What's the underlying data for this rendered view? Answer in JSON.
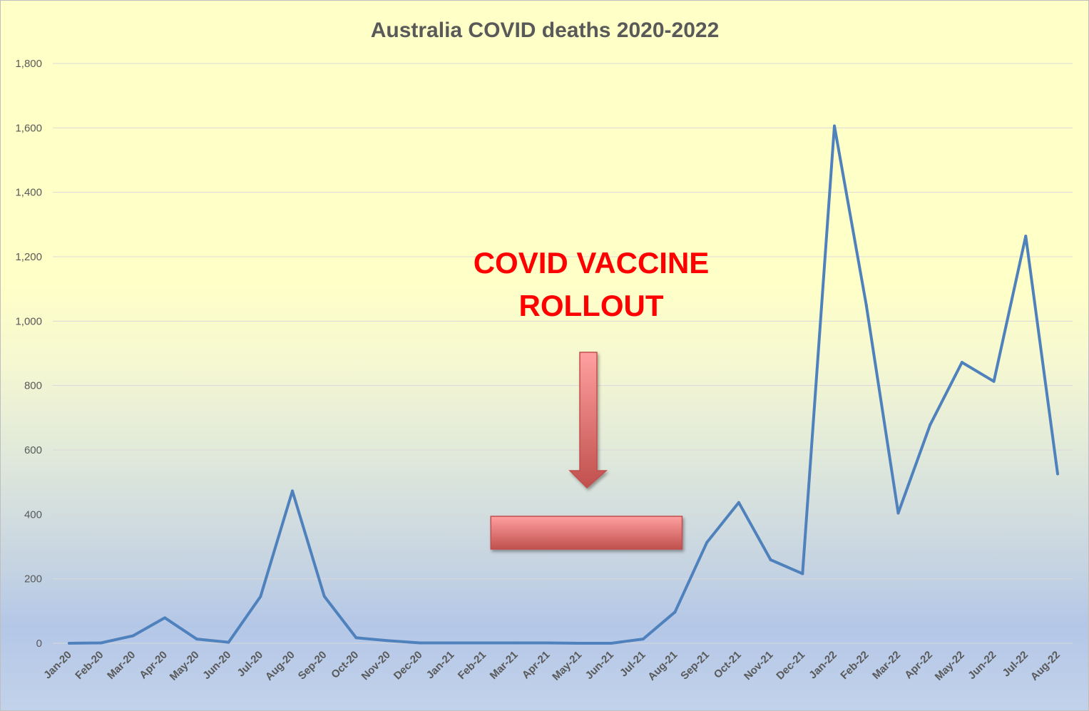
{
  "colors": {
    "line": "#4f81bd",
    "gridline": "#d9d9d9",
    "annotation_text": "#ff0000",
    "arrow_fill_top": "#ffa0a0",
    "arrow_fill_bottom": "#c0504d"
  },
  "chart_data": {
    "type": "line",
    "title": "Australia COVID deaths 2020-2022",
    "xlabel": "",
    "ylabel": "",
    "ylim": [
      0,
      1800
    ],
    "yticks": [
      "0",
      "200",
      "400",
      "600",
      "800",
      "1,000",
      "1,200",
      "1,400",
      "1,600",
      "1,800"
    ],
    "grid": true,
    "legend": "none",
    "categories": [
      "Jan-20",
      "Feb-20",
      "Mar-20",
      "Apr-20",
      "May-20",
      "Jun-20",
      "Jul-20",
      "Aug-20",
      "Sep-20",
      "Oct-20",
      "Nov-20",
      "Dec-20",
      "Jan-21",
      "Feb-21",
      "Mar-21",
      "Apr-21",
      "May-21",
      "Jun-21",
      "Jul-21",
      "Aug-21",
      "Sep-21",
      "Oct-21",
      "Nov-21",
      "Dec-21",
      "Jan-22",
      "Feb-22",
      "Mar-22",
      "Apr-22",
      "May-22",
      "Jun-22",
      "Jul-22",
      "Aug-22"
    ],
    "series": [
      {
        "values": [
          0,
          1,
          23,
          79,
          13,
          3,
          145,
          473,
          146,
          17,
          8,
          1,
          1,
          1,
          1,
          1,
          0,
          0,
          13,
          97,
          313,
          437,
          259,
          216,
          1606,
          1050,
          404,
          678,
          872,
          813,
          1264,
          526
        ]
      }
    ],
    "annotations": {
      "label_line1": "COVID VACCINE",
      "label_line2": "ROLLOUT",
      "arrow_direction": "down",
      "bar_span": [
        "Feb-21",
        "Aug-21"
      ]
    }
  }
}
